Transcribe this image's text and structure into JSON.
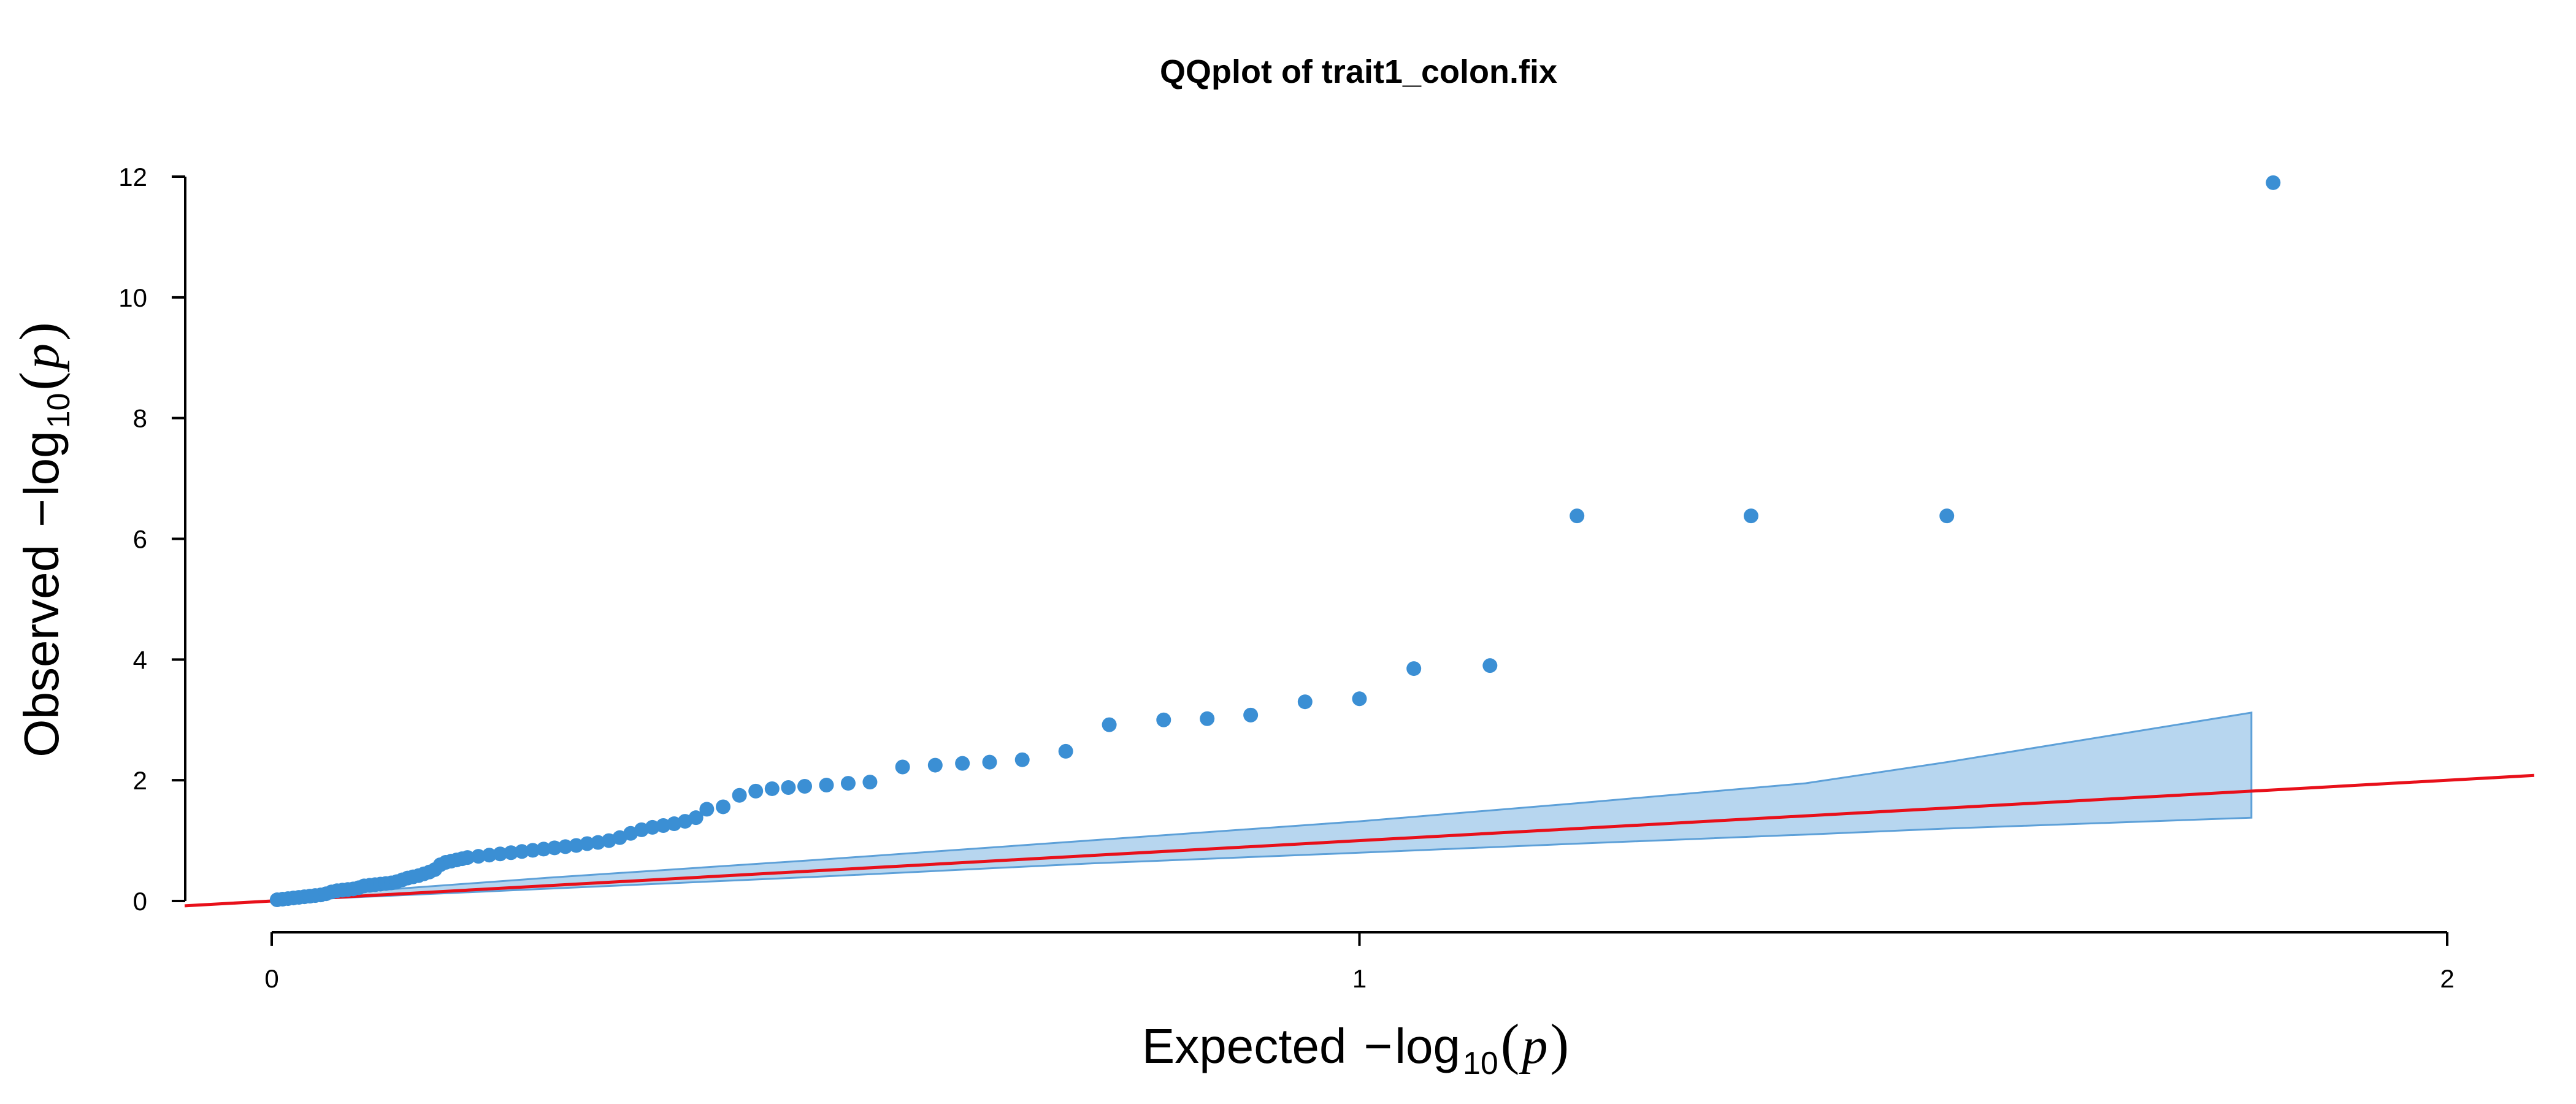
{
  "chart_data": {
    "type": "scatter",
    "title": "QQplot of trait1_colon.fix",
    "xlabel": {
      "prefix": "Expected",
      "minus": "−",
      "log": "log",
      "base": "10",
      "open": "(",
      "var": "p",
      "close": ")"
    },
    "ylabel": {
      "prefix": "Observed",
      "minus": "−",
      "log": "log",
      "base": "10",
      "open": "(",
      "var": "p",
      "close": ")"
    },
    "xlim": [
      -0.08,
      2.08
    ],
    "ylim": [
      -0.4,
      12.3
    ],
    "x_ticks": [
      0,
      1,
      2
    ],
    "x_tick_labels": [
      "0",
      "1",
      "2"
    ],
    "y_ticks": [
      0,
      2,
      4,
      6,
      8,
      10,
      12
    ],
    "y_tick_labels": [
      "0",
      "2",
      "4",
      "6",
      "8",
      "10",
      "12"
    ],
    "grid": false,
    "colors": {
      "points": "#3b8fd4",
      "band_fill": "#b7d6ef",
      "band_edge": "#5da0d8",
      "reference_line": "#e8101a"
    },
    "reference_line": {
      "slope": 1,
      "intercept": 0
    },
    "confidence_band": {
      "x": [
        0.0,
        0.25,
        0.5,
        0.75,
        1.0,
        1.2,
        1.41,
        1.54,
        1.82
      ],
      "upper": [
        0.05,
        0.38,
        0.68,
        1.0,
        1.32,
        1.62,
        1.95,
        2.3,
        3.12
      ],
      "lower": [
        0.0,
        0.2,
        0.4,
        0.62,
        0.8,
        0.95,
        1.1,
        1.2,
        1.38
      ]
    },
    "points": {
      "x": [
        0.005,
        0.01,
        0.015,
        0.02,
        0.025,
        0.03,
        0.035,
        0.04,
        0.045,
        0.05,
        0.055,
        0.06,
        0.065,
        0.07,
        0.075,
        0.08,
        0.085,
        0.09,
        0.095,
        0.1,
        0.105,
        0.11,
        0.115,
        0.12,
        0.125,
        0.13,
        0.135,
        0.14,
        0.145,
        0.15,
        0.155,
        0.16,
        0.165,
        0.17,
        0.175,
        0.18,
        0.19,
        0.2,
        0.21,
        0.22,
        0.23,
        0.24,
        0.25,
        0.26,
        0.27,
        0.28,
        0.29,
        0.3,
        0.31,
        0.32,
        0.33,
        0.34,
        0.35,
        0.36,
        0.37,
        0.38,
        0.39,
        0.4,
        0.415,
        0.43,
        0.445,
        0.46,
        0.475,
        0.49,
        0.51,
        0.53,
        0.55,
        0.58,
        0.61,
        0.635,
        0.66,
        0.69,
        0.73,
        0.77,
        0.82,
        0.86,
        0.9,
        0.95,
        1.0,
        1.05,
        1.12,
        1.2,
        1.36,
        1.54,
        1.84
      ],
      "y": [
        0.02,
        0.03,
        0.04,
        0.05,
        0.06,
        0.07,
        0.08,
        0.09,
        0.1,
        0.12,
        0.15,
        0.17,
        0.18,
        0.19,
        0.2,
        0.22,
        0.25,
        0.26,
        0.27,
        0.28,
        0.29,
        0.3,
        0.32,
        0.35,
        0.38,
        0.4,
        0.42,
        0.45,
        0.48,
        0.52,
        0.6,
        0.64,
        0.66,
        0.68,
        0.7,
        0.72,
        0.74,
        0.76,
        0.78,
        0.8,
        0.82,
        0.84,
        0.86,
        0.88,
        0.9,
        0.92,
        0.95,
        0.97,
        1.0,
        1.05,
        1.12,
        1.18,
        1.22,
        1.25,
        1.28,
        1.32,
        1.38,
        1.52,
        1.56,
        1.75,
        1.82,
        1.86,
        1.88,
        1.9,
        1.92,
        1.95,
        1.97,
        2.22,
        2.25,
        2.28,
        2.3,
        2.34,
        2.48,
        2.92,
        3.0,
        3.02,
        3.08,
        3.3,
        3.35,
        3.85,
        3.9,
        6.38,
        6.38,
        6.38,
        11.9
      ]
    }
  }
}
